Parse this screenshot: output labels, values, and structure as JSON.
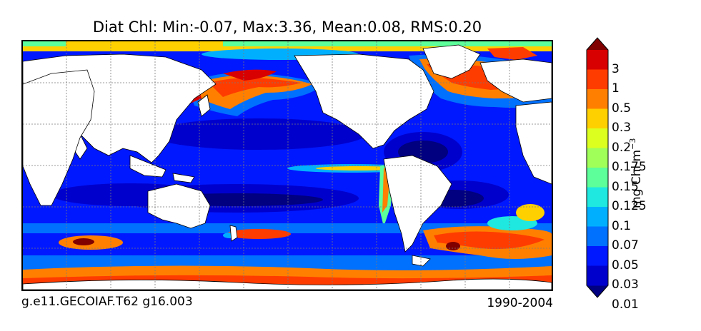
{
  "title": "Diat Chl: Min:-0.07, Max:3.36, Mean:0.08, RMS:0.20",
  "footer": {
    "left": "g.e11.GECOIAF.T62 g16.003",
    "right": "1990-2004"
  },
  "colorbar": {
    "label": "mg Chl m",
    "label_sup": "−3",
    "ticks": [
      "3",
      "1",
      "0.5",
      "0.3",
      "0.2",
      "0.175",
      "0.15",
      "0.125",
      "0.1",
      "0.07",
      "0.05",
      "0.03",
      "0.01"
    ],
    "levels": [
      {
        "color": "#000080",
        "label": "under-0.01"
      },
      {
        "color": "#0000cd",
        "label": "0.01-0.03"
      },
      {
        "color": "#0018ff",
        "label": "0.03-0.05"
      },
      {
        "color": "#0070ff",
        "label": "0.05-0.07"
      },
      {
        "color": "#00b0ff",
        "label": "0.07-0.1"
      },
      {
        "color": "#1ee8e0",
        "label": "0.1-0.125"
      },
      {
        "color": "#5cff9a",
        "label": "0.125-0.15"
      },
      {
        "color": "#a0ff58",
        "label": "0.15-0.175"
      },
      {
        "color": "#dcff20",
        "label": "0.175-0.2"
      },
      {
        "color": "#ffd000",
        "label": "0.2-0.3"
      },
      {
        "color": "#ff8000",
        "label": "0.3-0.5"
      },
      {
        "color": "#ff3c00",
        "label": "0.5-1"
      },
      {
        "color": "#d80000",
        "label": "1-3"
      },
      {
        "color": "#800000",
        "label": "over-3"
      }
    ]
  },
  "colors": {
    "land": "#ffffff",
    "ocean_base": "#0018ff",
    "grid": "#7a7a7a"
  }
}
